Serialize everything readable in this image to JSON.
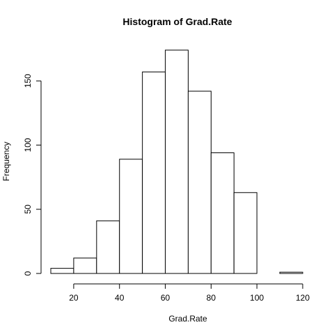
{
  "chart_data": {
    "type": "bar",
    "subtype": "histogram",
    "title": "Histogram of Grad.Rate",
    "xlabel": "Grad.Rate",
    "ylabel": "Frequency",
    "bins": [
      {
        "start": 10,
        "end": 20,
        "count": 4
      },
      {
        "start": 20,
        "end": 30,
        "count": 12
      },
      {
        "start": 30,
        "end": 40,
        "count": 41
      },
      {
        "start": 40,
        "end": 50,
        "count": 89
      },
      {
        "start": 50,
        "end": 60,
        "count": 157
      },
      {
        "start": 60,
        "end": 70,
        "count": 174
      },
      {
        "start": 70,
        "end": 80,
        "count": 142
      },
      {
        "start": 80,
        "end": 90,
        "count": 94
      },
      {
        "start": 90,
        "end": 100,
        "count": 63
      },
      {
        "start": 100,
        "end": 110,
        "count": 0
      },
      {
        "start": 110,
        "end": 120,
        "count": 1
      }
    ],
    "x_ticks": [
      "20",
      "40",
      "60",
      "80",
      "100",
      "120"
    ],
    "y_ticks": [
      "0",
      "50",
      "100",
      "150"
    ],
    "xlim": [
      10,
      120
    ],
    "ylim": [
      0,
      174
    ],
    "grid": false,
    "bar_fill": "#ffffff",
    "bar_stroke": "#000000"
  }
}
